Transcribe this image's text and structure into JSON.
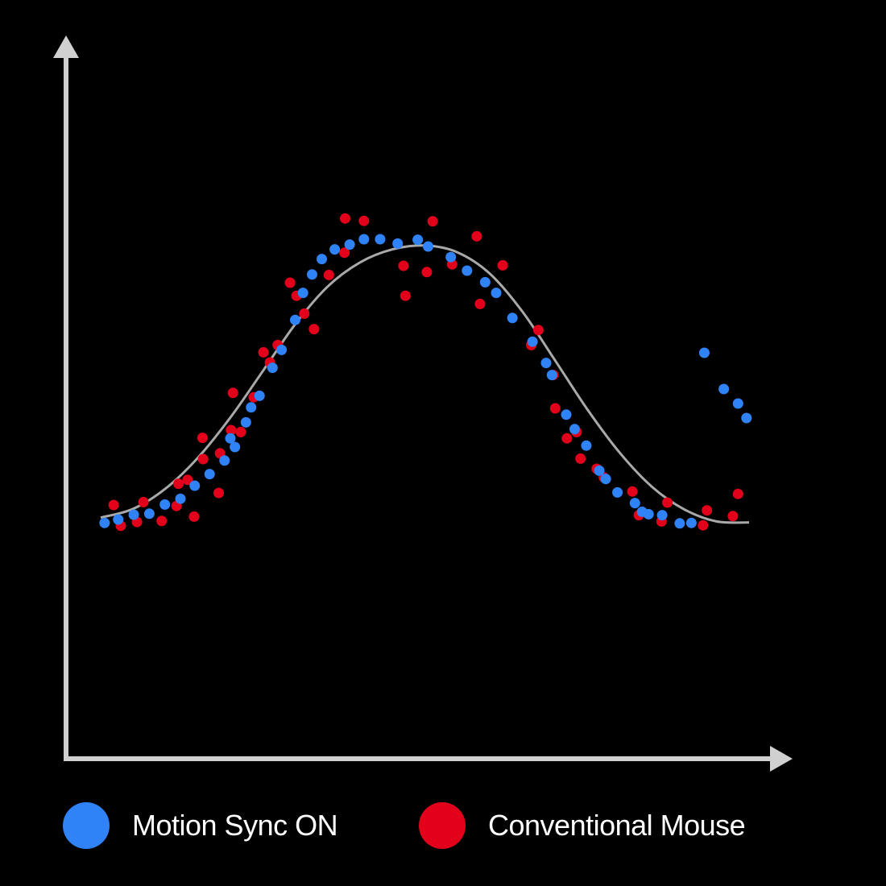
{
  "chart_data": {
    "type": "scatter",
    "title": "",
    "xlabel": "",
    "ylabel": "",
    "grid": false,
    "legend_placement": "bottom",
    "xlim": [
      0,
      1
    ],
    "ylim": [
      0,
      1
    ],
    "curve": {
      "color": "#a9a9a9",
      "x": [
        0,
        0.05,
        0.1,
        0.15,
        0.2,
        0.25,
        0.3,
        0.35,
        0.4,
        0.45,
        0.5,
        0.55,
        0.6,
        0.65,
        0.7,
        0.75,
        0.8,
        0.85,
        0.9,
        0.95,
        1
      ],
      "y": [
        0.354,
        0.372,
        0.414,
        0.478,
        0.561,
        0.657,
        0.754,
        0.832,
        0.882,
        0.909,
        0.917,
        0.903,
        0.859,
        0.781,
        0.681,
        0.579,
        0.489,
        0.418,
        0.371,
        0.346,
        0.344
      ]
    },
    "series": [
      {
        "name": "Motion Sync ON",
        "color": "#2f83f6",
        "x": [
          0.006,
          0.027,
          0.051,
          0.075,
          0.099,
          0.123,
          0.145,
          0.168,
          0.191,
          0.207,
          0.224,
          0.2,
          0.232,
          0.245,
          0.265,
          0.279,
          0.3,
          0.312,
          0.326,
          0.341,
          0.361,
          0.384,
          0.406,
          0.431,
          0.458,
          0.489,
          0.505,
          0.54,
          0.565,
          0.593,
          0.61,
          0.635,
          0.666,
          0.687,
          0.696,
          0.718,
          0.731,
          0.749,
          0.769,
          0.779,
          0.797,
          0.824,
          0.835,
          0.845,
          0.866,
          0.893,
          0.911,
          0.931,
          0.961,
          0.983,
          0.996
        ],
        "y": [
          0.343,
          0.35,
          0.36,
          0.362,
          0.381,
          0.393,
          0.42,
          0.444,
          0.472,
          0.5,
          0.551,
          0.518,
          0.582,
          0.606,
          0.664,
          0.701,
          0.763,
          0.819,
          0.857,
          0.889,
          0.909,
          0.919,
          0.93,
          0.93,
          0.921,
          0.929,
          0.915,
          0.893,
          0.865,
          0.841,
          0.819,
          0.767,
          0.718,
          0.674,
          0.649,
          0.567,
          0.537,
          0.503,
          0.451,
          0.434,
          0.406,
          0.384,
          0.366,
          0.361,
          0.359,
          0.342,
          0.343,
          0.695,
          0.62,
          0.59,
          0.56
        ]
      },
      {
        "name": "Conventional Mouse",
        "color": "#e2001a",
        "x": [
          0.02,
          0.031,
          0.056,
          0.066,
          0.094,
          0.117,
          0.12,
          0.134,
          0.144,
          0.158,
          0.157,
          0.182,
          0.184,
          0.201,
          0.204,
          0.216,
          0.236,
          0.251,
          0.261,
          0.273,
          0.292,
          0.302,
          0.314,
          0.329,
          0.352,
          0.376,
          0.377,
          0.406,
          0.467,
          0.47,
          0.503,
          0.512,
          0.542,
          0.58,
          0.585,
          0.62,
          0.664,
          0.675,
          0.698,
          0.701,
          0.719,
          0.734,
          0.74,
          0.765,
          0.776,
          0.82,
          0.83,
          0.865,
          0.874,
          0.929,
          0.935,
          0.975,
          0.983
        ],
        "y": [
          0.38,
          0.337,
          0.345,
          0.386,
          0.347,
          0.378,
          0.424,
          0.432,
          0.356,
          0.475,
          0.519,
          0.405,
          0.487,
          0.535,
          0.612,
          0.531,
          0.603,
          0.696,
          0.675,
          0.711,
          0.84,
          0.813,
          0.776,
          0.744,
          0.856,
          0.902,
          0.973,
          0.968,
          0.875,
          0.813,
          0.862,
          0.967,
          0.878,
          0.936,
          0.796,
          0.876,
          0.711,
          0.742,
          0.649,
          0.58,
          0.518,
          0.531,
          0.476,
          0.455,
          0.437,
          0.408,
          0.359,
          0.346,
          0.385,
          0.338,
          0.369,
          0.357,
          0.403
        ]
      }
    ]
  },
  "legend": {
    "items": [
      {
        "label": "Motion Sync ON",
        "color": "#2f83f6"
      },
      {
        "label": "Conventional Mouse",
        "color": "#e2001a"
      }
    ]
  }
}
